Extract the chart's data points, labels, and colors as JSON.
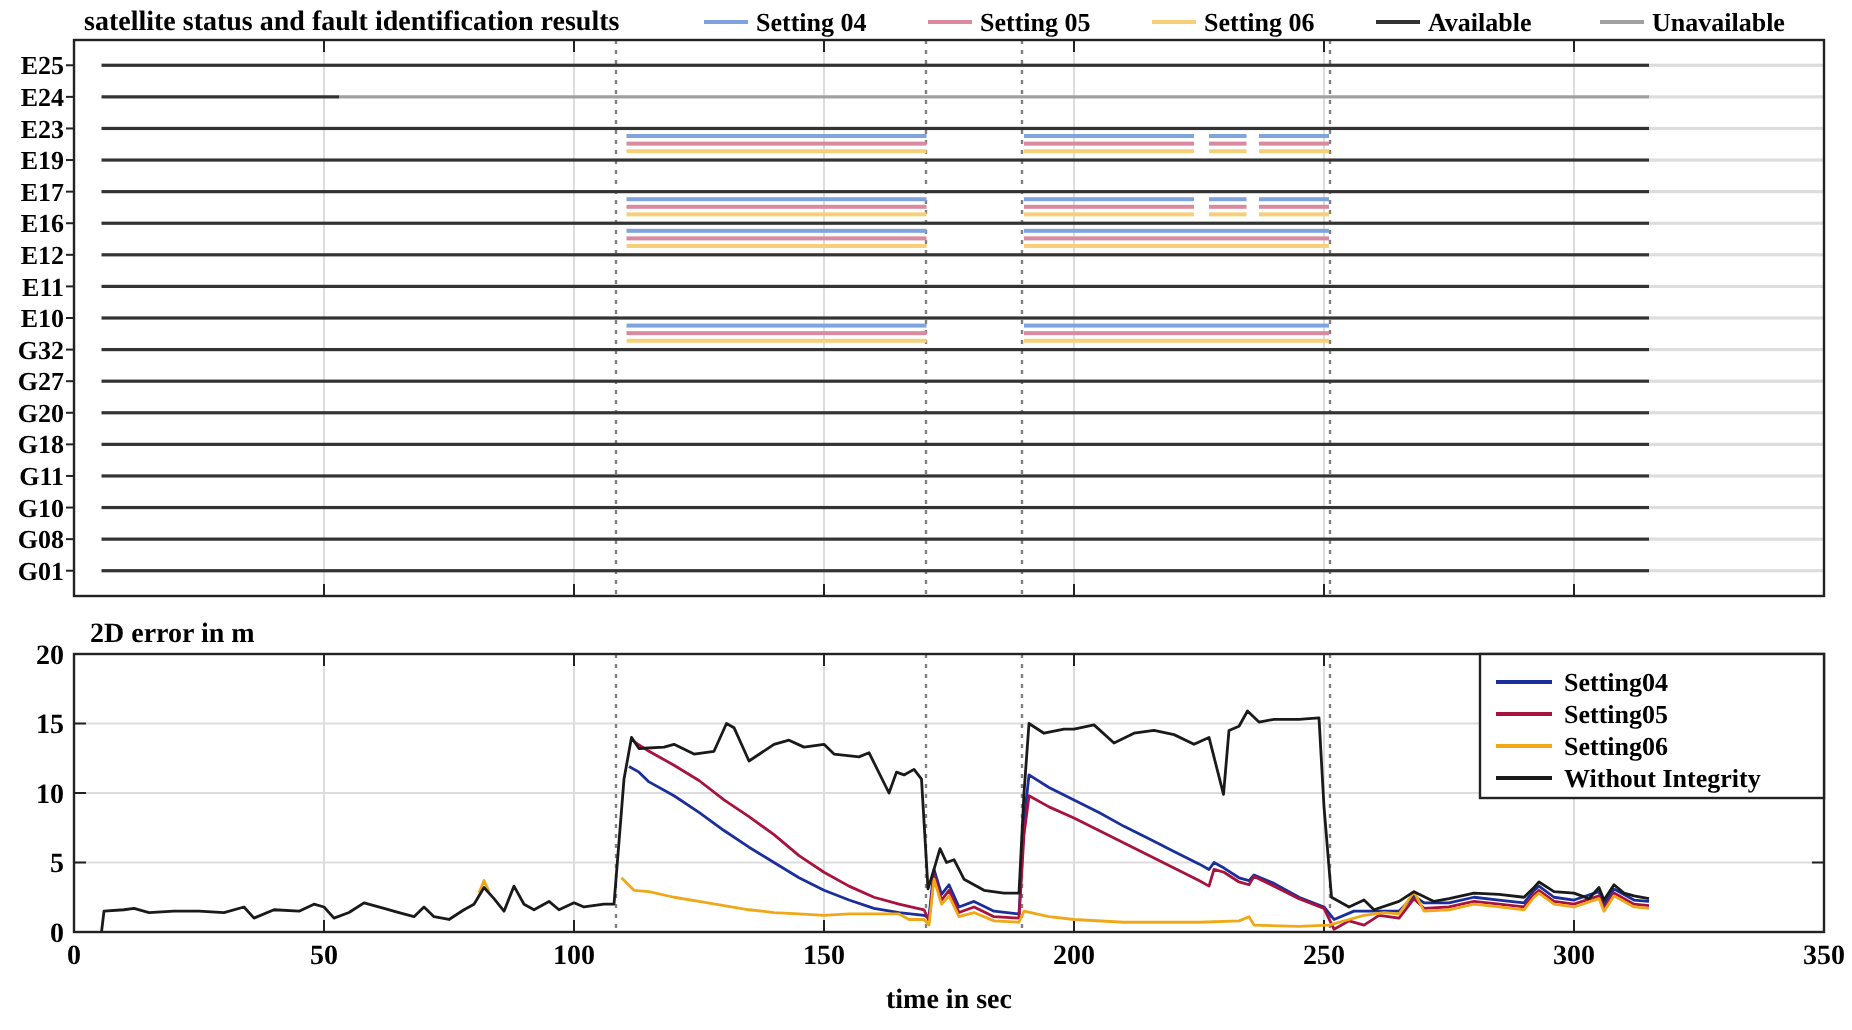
{
  "chart_data": [
    {
      "type": "bar",
      "title": "satellite status and fault identification results",
      "orientation": "horizontal",
      "categories": [
        "E25",
        "E24",
        "E23",
        "E19",
        "E17",
        "E16",
        "E12",
        "E11",
        "E10",
        "G32",
        "G27",
        "G20",
        "G18",
        "G11",
        "G10",
        "G08",
        "G01"
      ],
      "xlim": [
        0,
        350
      ],
      "xticks": [
        0,
        50,
        100,
        150,
        200,
        250,
        300,
        350
      ],
      "tick_labels": "y",
      "grid": "x",
      "legend": "top",
      "ref_lines": [
        {
          "axis": "x",
          "value": 108.4,
          "color": "#808080",
          "line_style": "dotted"
        },
        {
          "axis": "x",
          "value": 170.4,
          "color": "#808080",
          "line_style": "dotted"
        },
        {
          "axis": "x",
          "value": 189.6,
          "color": "#808080",
          "line_style": "dotted"
        },
        {
          "axis": "x",
          "value": 251.2,
          "color": "#808080",
          "line_style": "dotted"
        }
      ],
      "series": [
        {
          "name": "Setting 04",
          "color": "#7fa3dc",
          "values": [
            null,
            null,
            60,
            null,
            60,
            60,
            null,
            null,
            60,
            null,
            null,
            null,
            null,
            null,
            null,
            null,
            null
          ],
          "base": [
            null,
            null,
            110.5,
            null,
            110.5,
            110.5,
            null,
            null,
            110.5,
            null,
            null,
            null,
            null,
            null,
            null,
            null,
            null
          ]
        },
        {
          "color": "#7fa3dc",
          "values": [
            null,
            null,
            34,
            null,
            34,
            61,
            null,
            null,
            61,
            null,
            null,
            null,
            null,
            null,
            null,
            null,
            null
          ],
          "base": [
            null,
            null,
            190,
            null,
            190,
            190,
            null,
            null,
            190,
            null,
            null,
            null,
            null,
            null,
            null,
            null,
            null
          ]
        },
        {
          "color": "#7fa3dc",
          "values": [
            null,
            null,
            7.5,
            null,
            7.5,
            null,
            null,
            null,
            null,
            null,
            null,
            null,
            null,
            null,
            null,
            null,
            null
          ],
          "base": [
            null,
            null,
            227,
            null,
            227,
            null,
            null,
            null,
            null,
            null,
            null,
            null,
            null,
            null,
            null,
            null,
            null
          ]
        },
        {
          "color": "#7fa3dc",
          "values": [
            null,
            null,
            14,
            null,
            14,
            null,
            null,
            null,
            null,
            null,
            null,
            null,
            null,
            null,
            null,
            null,
            null
          ],
          "base": [
            null,
            null,
            237,
            null,
            237,
            null,
            null,
            null,
            null,
            null,
            null,
            null,
            null,
            null,
            null,
            null,
            null
          ]
        },
        {
          "name": "Setting 05",
          "color": "#d98a9e",
          "values": [
            null,
            null,
            60,
            null,
            60,
            60,
            null,
            null,
            60,
            null,
            null,
            null,
            null,
            null,
            null,
            null,
            null
          ],
          "base": [
            null,
            null,
            110.5,
            null,
            110.5,
            110.5,
            null,
            null,
            110.5,
            null,
            null,
            null,
            null,
            null,
            null,
            null,
            null
          ]
        },
        {
          "color": "#d98a9e",
          "values": [
            null,
            null,
            34,
            null,
            34,
            61,
            null,
            null,
            61,
            null,
            null,
            null,
            null,
            null,
            null,
            null,
            null
          ],
          "base": [
            null,
            null,
            190,
            null,
            190,
            190,
            null,
            null,
            190,
            null,
            null,
            null,
            null,
            null,
            null,
            null,
            null
          ]
        },
        {
          "color": "#d98a9e",
          "values": [
            null,
            null,
            7.5,
            null,
            7.5,
            null,
            null,
            null,
            null,
            null,
            null,
            null,
            null,
            null,
            null,
            null,
            null
          ],
          "base": [
            null,
            null,
            227,
            null,
            227,
            null,
            null,
            null,
            null,
            null,
            null,
            null,
            null,
            null,
            null,
            null,
            null
          ]
        },
        {
          "color": "#d98a9e",
          "values": [
            null,
            null,
            14,
            null,
            14,
            null,
            null,
            null,
            null,
            null,
            null,
            null,
            null,
            null,
            null,
            null,
            null
          ],
          "base": [
            null,
            null,
            237,
            null,
            237,
            null,
            null,
            null,
            null,
            null,
            null,
            null,
            null,
            null,
            null,
            null,
            null
          ]
        },
        {
          "name": "Setting 06",
          "color": "#f7cf78",
          "values": [
            null,
            null,
            60,
            null,
            60,
            60,
            null,
            null,
            60,
            null,
            null,
            null,
            null,
            null,
            null,
            null,
            null
          ],
          "base": [
            null,
            null,
            110.5,
            null,
            110.5,
            110.5,
            null,
            null,
            110.5,
            null,
            null,
            null,
            null,
            null,
            null,
            null,
            null
          ]
        },
        {
          "color": "#f7cf78",
          "values": [
            null,
            null,
            34,
            null,
            34,
            61,
            null,
            null,
            61,
            null,
            null,
            null,
            null,
            null,
            null,
            null,
            null
          ],
          "base": [
            null,
            null,
            190,
            null,
            190,
            190,
            null,
            null,
            190,
            null,
            null,
            null,
            null,
            null,
            null,
            null,
            null
          ]
        },
        {
          "color": "#f7cf78",
          "values": [
            null,
            null,
            7.5,
            null,
            7.5,
            null,
            null,
            null,
            null,
            null,
            null,
            null,
            null,
            null,
            null,
            null,
            null
          ],
          "base": [
            null,
            null,
            227,
            null,
            227,
            null,
            null,
            null,
            null,
            null,
            null,
            null,
            null,
            null,
            null,
            null,
            null
          ]
        },
        {
          "color": "#f7cf78",
          "values": [
            null,
            null,
            14,
            null,
            14,
            null,
            null,
            null,
            null,
            null,
            null,
            null,
            null,
            null,
            null,
            null,
            null
          ],
          "base": [
            null,
            null,
            237,
            null,
            237,
            null,
            null,
            null,
            null,
            null,
            null,
            null,
            null,
            null,
            null,
            null,
            null
          ]
        },
        {
          "name": "Available",
          "color": "#333333",
          "values": [
            309.5,
            47.5,
            309.5,
            309.5,
            309.5,
            309.5,
            309.5,
            309.5,
            309.5,
            309.5,
            309.5,
            309.5,
            309.5,
            309.5,
            309.5,
            309.5,
            309.5
          ],
          "base": [
            5.5,
            5.5,
            5.5,
            5.5,
            5.5,
            5.5,
            5.5,
            5.5,
            5.5,
            5.5,
            5.5,
            5.5,
            5.5,
            5.5,
            5.5,
            5.5,
            5.5
          ]
        },
        {
          "name": "Unavailable",
          "color": "#a0a0a0",
          "values": [
            null,
            262,
            null,
            null,
            null,
            null,
            null,
            null,
            null,
            null,
            null,
            null,
            null,
            null,
            null,
            null,
            null
          ],
          "base": [
            null,
            53,
            null,
            null,
            null,
            null,
            null,
            null,
            null,
            null,
            null,
            null,
            null,
            null,
            null,
            null,
            null
          ]
        },
        {
          "color": "#dddddd",
          "values": [
            35,
            35,
            35,
            35,
            35,
            35,
            35,
            35,
            35,
            35,
            35,
            35,
            35,
            35,
            35,
            35,
            35
          ],
          "base": [
            315,
            315,
            315,
            315,
            315,
            315,
            315,
            315,
            315,
            315,
            315,
            315,
            315,
            315,
            315,
            315,
            315
          ]
        }
      ]
    },
    {
      "type": "line",
      "title": "2D error in m",
      "xlabel": "time in sec",
      "xlim": [
        0,
        350
      ],
      "xticks": [
        0,
        50,
        100,
        150,
        200,
        250,
        300,
        350
      ],
      "ylim": [
        0,
        20
      ],
      "yticks": [
        0,
        5,
        10,
        15,
        20
      ],
      "grid": true,
      "legend": "top right",
      "ref_lines": [
        {
          "axis": "x",
          "value": 108.4,
          "color": "#808080",
          "line_style": "dotted"
        },
        {
          "axis": "x",
          "value": 170.4,
          "color": "#808080",
          "line_style": "dotted"
        },
        {
          "axis": "x",
          "value": 189.6,
          "color": "#808080",
          "line_style": "dotted"
        },
        {
          "axis": "x",
          "value": 251.2,
          "color": "#808080",
          "line_style": "dotted"
        }
      ],
      "series": [
        {
          "name": "Setting04",
          "color": "#1a2f9c",
          "x": [
            111,
            113,
            115,
            120,
            125,
            130,
            135,
            140,
            145,
            150,
            155,
            160,
            165,
            170,
            171,
            172,
            173.5,
            175,
            177,
            180,
            184,
            189,
            190,
            191,
            195,
            200,
            205,
            210,
            215,
            220,
            225,
            227,
            228,
            230,
            233,
            235,
            236,
            240,
            245,
            250,
            252,
            256,
            260,
            265,
            268,
            270,
            275,
            280,
            285,
            290,
            292,
            293,
            296,
            300,
            305,
            306,
            308,
            312,
            315
          ],
          "values": [
            11.9,
            11.5,
            10.8,
            9.8,
            8.6,
            7.3,
            6.1,
            5.0,
            3.9,
            3.0,
            2.3,
            1.7,
            1.4,
            1.2,
            1.1,
            4.5,
            2.7,
            3.4,
            1.8,
            2.2,
            1.5,
            1.3,
            8,
            11.3,
            10.4,
            9.5,
            8.6,
            7.6,
            6.7,
            5.8,
            4.9,
            4.5,
            5.0,
            4.6,
            3.9,
            3.7,
            4.1,
            3.5,
            2.5,
            1.8,
            0.9,
            1.5,
            1.5,
            1.5,
            2.6,
            2.1,
            2.1,
            2.5,
            2.3,
            2.1,
            3.0,
            3.3,
            2.5,
            2.3,
            2.9,
            2.0,
            3.1,
            2.3,
            2.2
          ]
        },
        {
          "name": "Setting05",
          "color": "#a8123e",
          "x": [
            112,
            115,
            120,
            125,
            130,
            135,
            140,
            145,
            150,
            155,
            160,
            165,
            170,
            171,
            172,
            173.5,
            175,
            177,
            180,
            184,
            189,
            190,
            191,
            195,
            200,
            205,
            210,
            215,
            220,
            225,
            227,
            228,
            230,
            233,
            235,
            236,
            240,
            245,
            250,
            252,
            255,
            258,
            261,
            265,
            268,
            270,
            275,
            280,
            285,
            290,
            292,
            293,
            296,
            300,
            305,
            306,
            308,
            312,
            315
          ],
          "values": [
            13.7,
            13.0,
            12.0,
            10.9,
            9.5,
            8.3,
            7.0,
            5.5,
            4.3,
            3.3,
            2.5,
            2.0,
            1.6,
            0.8,
            4.1,
            2.3,
            3.0,
            1.4,
            1.8,
            1.1,
            1.0,
            7,
            9.8,
            9.0,
            8.2,
            7.3,
            6.4,
            5.5,
            4.6,
            3.7,
            3.3,
            4.5,
            4.3,
            3.6,
            3.4,
            4.0,
            3.3,
            2.4,
            1.7,
            0.2,
            0.8,
            0.5,
            1.2,
            1.0,
            2.4,
            1.7,
            1.8,
            2.2,
            2.0,
            1.8,
            2.7,
            3.0,
            2.2,
            2.0,
            2.6,
            1.7,
            2.8,
            2.0,
            1.9
          ]
        },
        {
          "name": "Setting06",
          "color": "#f0a818",
          "x": [
            81,
            82,
            83,
            96,
            109.5,
            112,
            115,
            120,
            125,
            130,
            135,
            140,
            145,
            150,
            155,
            160,
            165,
            167,
            170,
            171,
            172,
            173.5,
            175,
            177,
            180,
            184,
            189,
            190,
            195,
            200,
            210,
            220,
            225,
            233,
            235,
            236,
            245,
            251,
            255,
            258,
            262,
            265,
            268,
            270,
            275,
            280,
            285,
            290,
            292,
            293,
            296,
            300,
            305,
            306,
            308,
            312,
            315
          ],
          "values": [
            2.8,
            3.7,
            2.9,
            null,
            3.9,
            3.0,
            2.9,
            2.5,
            2.2,
            1.9,
            1.6,
            1.4,
            1.3,
            1.2,
            1.3,
            1.3,
            1.3,
            0.9,
            0.9,
            0.5,
            3.8,
            2.0,
            2.6,
            1.1,
            1.4,
            0.8,
            0.7,
            1.5,
            1.1,
            0.9,
            0.7,
            0.7,
            0.7,
            0.8,
            1.1,
            0.5,
            0.4,
            0.5,
            0.9,
            1.2,
            1.4,
            1.3,
            2.9,
            1.5,
            1.6,
            2.0,
            1.8,
            1.6,
            2.5,
            2.8,
            2.0,
            1.8,
            2.4,
            1.5,
            2.6,
            1.8,
            1.7
          ]
        },
        {
          "name": "Without Integrity",
          "color": "#1a1a1a",
          "x": [
            5.5,
            6,
            10,
            12,
            15,
            20,
            25,
            30,
            34,
            36,
            40,
            45,
            48,
            50,
            52,
            55,
            58,
            62,
            65,
            68,
            70,
            72,
            75,
            78,
            80,
            82,
            84,
            86,
            88,
            90,
            92,
            95,
            97,
            100,
            102,
            106,
            108,
            110,
            111.5,
            113,
            118,
            120,
            124,
            128,
            130.5,
            132,
            135,
            140,
            143,
            146,
            150,
            152,
            157,
            159,
            163,
            164.5,
            166,
            168,
            169.5,
            170.8,
            172,
            173.2,
            174.5,
            176,
            178,
            182,
            186,
            189,
            190,
            191,
            194,
            198,
            200,
            204,
            208,
            212,
            216,
            220,
            224,
            227,
            229.9,
            231,
            233,
            234.7,
            237,
            240,
            245,
            249,
            250,
            251.5,
            255,
            258,
            260,
            265,
            268,
            272,
            275,
            280,
            285,
            290,
            292,
            293,
            296,
            300,
            303,
            305,
            306,
            308,
            310,
            312,
            315
          ],
          "values": [
            0,
            1.5,
            1.6,
            1.7,
            1.4,
            1.5,
            1.5,
            1.4,
            1.8,
            1.0,
            1.6,
            1.5,
            2.0,
            1.8,
            1.0,
            1.4,
            2.1,
            1.7,
            1.4,
            1.1,
            1.8,
            1.1,
            0.9,
            1.6,
            2.0,
            3.2,
            2.4,
            1.5,
            3.3,
            2.0,
            1.6,
            2.2,
            1.6,
            2.1,
            1.8,
            2.0,
            2.0,
            11,
            14.0,
            13.2,
            13.3,
            13.5,
            12.8,
            13.0,
            15.0,
            14.7,
            12.3,
            13.5,
            13.8,
            13.3,
            13.5,
            12.8,
            12.6,
            12.9,
            10.0,
            11.5,
            11.3,
            11.7,
            11.0,
            3.1,
            4.5,
            6.0,
            5.0,
            5.2,
            3.8,
            3.0,
            2.8,
            2.8,
            10,
            15.0,
            14.3,
            14.6,
            14.6,
            14.9,
            13.6,
            14.3,
            14.5,
            14.2,
            13.5,
            14.0,
            9.9,
            14.5,
            14.8,
            15.9,
            15.1,
            15.3,
            15.3,
            15.4,
            9,
            2.5,
            1.8,
            2.3,
            1.6,
            2.2,
            2.9,
            2.2,
            2.4,
            2.8,
            2.7,
            2.5,
            3.2,
            3.6,
            2.9,
            2.8,
            2.4,
            3.2,
            2.3,
            3.4,
            2.8,
            2.6,
            2.4
          ]
        }
      ]
    }
  ]
}
